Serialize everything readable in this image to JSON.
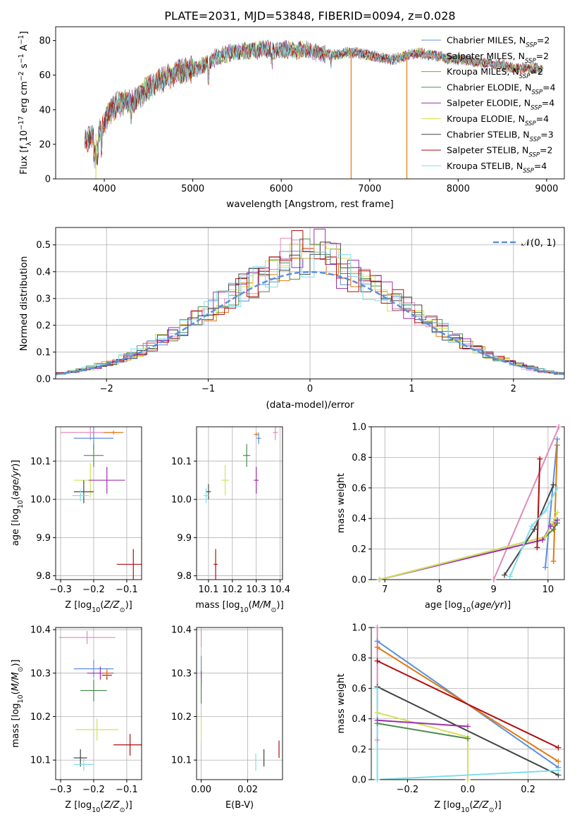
{
  "title": "PLATE=2031, MJD=53848, FIBERID=0094, z=0.028",
  "colors": {
    "Chabrier MILES": "#5b8fde",
    "Salpeter MILES": "#e389b9",
    "Kroupa MILES": "#e07a10",
    "Chabrier ELODIE": "#4e8a4e",
    "Salpeter ELODIE": "#9b2fae",
    "Kroupa ELODIE": "#d4e157",
    "Chabrier STELIB": "#444444",
    "Salpeter STELIB": "#b00d0d",
    "Kroupa STELIB": "#80deea"
  },
  "legend": [
    {
      "name": "Chabrier MILES",
      "n": "2"
    },
    {
      "name": "Salpeter MILES",
      "n": "2"
    },
    {
      "name": "Kroupa MILES",
      "n": "2"
    },
    {
      "name": "Chabrier ELODIE",
      "n": "4"
    },
    {
      "name": "Salpeter ELODIE",
      "n": "4"
    },
    {
      "name": "Kroupa ELODIE",
      "n": "4"
    },
    {
      "name": "Chabrier STELIB",
      "n": "3"
    },
    {
      "name": "Salpeter STELIB",
      "n": "2"
    },
    {
      "name": "Kroupa STELIB",
      "n": "4"
    }
  ],
  "legend_nssp": "N",
  "legend_nssp_sub": "SSP",
  "chart_data": [
    {
      "type": "line",
      "name": "spectrum",
      "xlabel": "wavelength [Angstrom, rest frame]",
      "ylabel": "Flux [f",
      "ylabel_parts": [
        "Flux [f",
        "λ",
        "10",
        "−17",
        " erg cm",
        "−2",
        " s",
        "−1",
        " A",
        "−1",
        "]"
      ],
      "xlim": [
        3450,
        9200
      ],
      "ylim": [
        0,
        88
      ],
      "xticks": [
        "4000",
        "5000",
        "6000",
        "7000",
        "8000",
        "9000"
      ],
      "yticks": [
        "0",
        "20",
        "40",
        "60",
        "80"
      ],
      "continuum": [
        [
          3780,
          22
        ],
        [
          3850,
          24
        ],
        [
          3950,
          28
        ],
        [
          4050,
          38
        ],
        [
          4150,
          43
        ],
        [
          4250,
          45
        ],
        [
          4350,
          46
        ],
        [
          4450,
          50
        ],
        [
          4550,
          55
        ],
        [
          4650,
          57
        ],
        [
          4750,
          60
        ],
        [
          4850,
          62
        ],
        [
          4950,
          63
        ],
        [
          5050,
          64
        ],
        [
          5150,
          66
        ],
        [
          5250,
          70
        ],
        [
          5350,
          72
        ],
        [
          5450,
          73
        ],
        [
          5550,
          74
        ],
        [
          5650,
          74
        ],
        [
          5750,
          75
        ],
        [
          5850,
          75
        ],
        [
          5950,
          74
        ],
        [
          6050,
          75
        ],
        [
          6150,
          74
        ],
        [
          6250,
          75
        ],
        [
          6350,
          74
        ],
        [
          6450,
          72
        ],
        [
          6550,
          72
        ],
        [
          6650,
          72
        ],
        [
          6750,
          73
        ],
        [
          6850,
          73
        ],
        [
          6950,
          72
        ],
        [
          7050,
          71
        ],
        [
          7150,
          70
        ],
        [
          7250,
          69
        ],
        [
          7350,
          70
        ],
        [
          7450,
          72
        ],
        [
          7550,
          73
        ],
        [
          7650,
          72
        ],
        [
          7750,
          71
        ],
        [
          7850,
          70
        ],
        [
          7950,
          69
        ],
        [
          8050,
          69
        ],
        [
          8150,
          68
        ],
        [
          8250,
          67
        ],
        [
          8350,
          67
        ],
        [
          8450,
          66
        ],
        [
          8550,
          65
        ],
        [
          8650,
          64
        ],
        [
          8750,
          64
        ],
        [
          8850,
          64
        ],
        [
          8950,
          64
        ]
      ],
      "dips": [
        {
          "series": "Kroupa ELODIE",
          "x": 3905,
          "to": 0
        },
        {
          "series": "Kroupa MILES",
          "x": 6790,
          "to": 0
        },
        {
          "series": "Kroupa MILES",
          "x": 7420,
          "to": 0
        }
      ]
    },
    {
      "type": "histogram",
      "name": "residuals",
      "xlabel": "(data-model)/error",
      "ylabel": "Normed distribution",
      "xlim": [
        -2.5,
        2.5
      ],
      "ylim": [
        0,
        0.565
      ],
      "xticks": [
        "−2",
        "−1",
        "0",
        "1",
        "2"
      ],
      "yticks": [
        "0.0",
        "0.1",
        "0.2",
        "0.3",
        "0.4",
        "0.5"
      ],
      "legend": "𝒩(0, 1)"
    },
    {
      "type": "scatter",
      "name": "age-vs-Z",
      "xlabel": "Z [log",
      "xlabel_sub": "10",
      "xlabel_rest": "(Z/Z",
      "ylabel_text": "age  [log",
      "xlim": [
        -0.315,
        -0.055
      ],
      "ylim": [
        9.79,
        10.19
      ],
      "xticks": [
        "−0.3",
        "−0.2",
        "−0.1"
      ],
      "yticks": [
        "9.8",
        "9.9",
        "10.0",
        "10.1"
      ],
      "points": [
        {
          "series": "Salpeter MILES",
          "x": -0.21,
          "y": 10.175,
          "xerr": 0.09,
          "yerr": 0.02
        },
        {
          "series": "Kroupa MILES",
          "x": -0.14,
          "y": 10.175,
          "xerr": 0.03,
          "yerr": 0.005
        },
        {
          "series": "Chabrier MILES",
          "x": -0.2,
          "y": 10.16,
          "xerr": 0.06,
          "yerr": 0.03
        },
        {
          "series": "Chabrier ELODIE",
          "x": -0.2,
          "y": 10.115,
          "xerr": 0.03,
          "yerr": 0.03
        },
        {
          "series": "Kroupa ELODIE",
          "x": -0.21,
          "y": 10.05,
          "xerr": 0.05,
          "yerr": 0.045
        },
        {
          "series": "Salpeter ELODIE",
          "x": -0.16,
          "y": 10.05,
          "xerr": 0.055,
          "yerr": 0.035
        },
        {
          "series": "Chabrier STELIB",
          "x": -0.23,
          "y": 10.02,
          "xerr": 0.03,
          "yerr": 0.03
        },
        {
          "series": "Kroupa STELIB",
          "x": -0.24,
          "y": 10.01,
          "xerr": 0.025,
          "yerr": 0.015
        },
        {
          "series": "Salpeter STELIB",
          "x": -0.08,
          "y": 9.83,
          "xerr": 0.05,
          "yerr": 0.04
        }
      ]
    },
    {
      "type": "scatter",
      "name": "age-vs-mass",
      "xlabel": "mass [log",
      "xlim": [
        10.05,
        10.41
      ],
      "ylim": [
        9.79,
        10.19
      ],
      "xticks": [
        "10.1",
        "10.2",
        "10.3",
        "10.4"
      ],
      "yticks": [
        "9.8",
        "9.9",
        "10.0",
        "10.1"
      ],
      "points": [
        {
          "series": "Salpeter MILES",
          "x": 10.38,
          "y": 10.175,
          "xerr": 0.01,
          "yerr": 0.02
        },
        {
          "series": "Kroupa MILES",
          "x": 10.3,
          "y": 10.17,
          "xerr": 0.01,
          "yerr": 0.005
        },
        {
          "series": "Chabrier MILES",
          "x": 10.31,
          "y": 10.16,
          "xerr": 0.01,
          "yerr": 0.015
        },
        {
          "series": "Chabrier ELODIE",
          "x": 10.26,
          "y": 10.115,
          "xerr": 0.015,
          "yerr": 0.03
        },
        {
          "series": "Kroupa ELODIE",
          "x": 10.17,
          "y": 10.05,
          "xerr": 0.015,
          "yerr": 0.04
        },
        {
          "series": "Salpeter ELODIE",
          "x": 10.3,
          "y": 10.05,
          "xerr": 0.01,
          "yerr": 0.035
        },
        {
          "series": "Chabrier STELIB",
          "x": 10.1,
          "y": 10.02,
          "xerr": 0.01,
          "yerr": 0.02
        },
        {
          "series": "Kroupa STELIB",
          "x": 10.09,
          "y": 10.01,
          "xerr": 0.01,
          "yerr": 0.02
        },
        {
          "series": "Salpeter STELIB",
          "x": 10.13,
          "y": 9.83,
          "xerr": 0.008,
          "yerr": 0.04
        }
      ]
    },
    {
      "type": "line",
      "name": "massweight-vs-age",
      "xlabel": "age  [log",
      "ylabel": "mass weight",
      "xlim": [
        6.75,
        10.3
      ],
      "ylim": [
        0,
        1.0
      ],
      "xticks": [
        "7",
        "8",
        "9",
        "10"
      ],
      "yticks": [
        "0.0",
        "0.2",
        "0.4",
        "0.6",
        "0.8",
        "1.0"
      ],
      "series": [
        {
          "name": "Chabrier MILES",
          "x": [
            9.95,
            10.17
          ],
          "y": [
            0.08,
            0.92
          ]
        },
        {
          "name": "Salpeter MILES",
          "x": [
            9.0,
            10.2
          ],
          "y": [
            0.0,
            1.0
          ]
        },
        {
          "name": "Kroupa MILES",
          "x": [
            10.1,
            10.17
          ],
          "y": [
            0.12,
            0.88
          ]
        },
        {
          "name": "Chabrier ELODIE",
          "x": [
            6.9,
            9.95,
            10.1,
            10.17
          ],
          "y": [
            0.0,
            0.28,
            0.33,
            0.37
          ]
        },
        {
          "name": "Salpeter ELODIE",
          "x": [
            6.9,
            9.9,
            10.05,
            10.17
          ],
          "y": [
            0.0,
            0.26,
            0.35,
            0.39
          ]
        },
        {
          "name": "Kroupa ELODIE",
          "x": [
            6.9,
            9.95,
            10.1,
            10.17
          ],
          "y": [
            0.0,
            0.28,
            0.38,
            0.44
          ]
        },
        {
          "name": "Chabrier STELIB",
          "x": [
            9.2,
            9.75,
            10.1
          ],
          "y": [
            0.03,
            0.33,
            0.62
          ]
        },
        {
          "name": "Salpeter STELIB",
          "x": [
            9.8,
            9.85
          ],
          "y": [
            0.21,
            0.79
          ]
        },
        {
          "name": "Kroupa STELIB",
          "x": [
            9.3,
            9.7,
            9.95,
            10.17
          ],
          "y": [
            0.02,
            0.35,
            0.45,
            0.6
          ]
        }
      ]
    },
    {
      "type": "scatter",
      "name": "mass-vs-Z",
      "xlabel": "Z [log",
      "ylabel_text": "mass [log",
      "xlim": [
        -0.315,
        -0.055
      ],
      "ylim": [
        10.055,
        10.405
      ],
      "xticks": [
        "−0.3",
        "−0.2",
        "−0.1"
      ],
      "yticks": [
        "10.1",
        "10.2",
        "10.3",
        "10.4"
      ],
      "points": [
        {
          "series": "Salpeter MILES",
          "x": -0.22,
          "y": 10.382,
          "xerr": 0.085,
          "yerr": 0.015
        },
        {
          "series": "Chabrier MILES",
          "x": -0.2,
          "y": 10.31,
          "xerr": 0.06,
          "yerr": 0.02
        },
        {
          "series": "Salpeter ELODIE",
          "x": -0.18,
          "y": 10.3,
          "xerr": 0.04,
          "yerr": 0.015
        },
        {
          "series": "Salpeter STELIB",
          "x": -0.16,
          "y": 10.295,
          "xerr": 0.015,
          "yerr": 0.01
        },
        {
          "series": "Kroupa MILES",
          "x": -0.16,
          "y": 10.3,
          "xerr": 0.01,
          "yerr": 0.01
        },
        {
          "series": "Chabrier ELODIE",
          "x": -0.2,
          "y": 10.26,
          "xerr": 0.04,
          "yerr": 0.025
        },
        {
          "series": "Kroupa ELODIE",
          "x": -0.19,
          "y": 10.17,
          "xerr": 0.065,
          "yerr": 0.025
        },
        {
          "series": "Salpeter STELIB",
          "x": -0.09,
          "y": 10.135,
          "xerr": 0.05,
          "yerr": 0.025
        },
        {
          "series": "Chabrier STELIB",
          "x": -0.24,
          "y": 10.105,
          "xerr": 0.02,
          "yerr": 0.02
        },
        {
          "series": "Kroupa STELIB",
          "x": -0.23,
          "y": 10.09,
          "xerr": 0.03,
          "yerr": 0.015
        }
      ]
    },
    {
      "type": "scatter",
      "name": "mass-vs-EBV",
      "xlabel": "E(B-V)",
      "xlim": [
        -0.002,
        0.035
      ],
      "ylim": [
        10.055,
        10.405
      ],
      "xticks": [
        "0.00",
        "0.02"
      ],
      "yticks": [
        "10.1",
        "10.2",
        "10.3",
        "10.4"
      ],
      "points": [
        {
          "series": "Salpeter MILES",
          "x": 0.0,
          "y": 10.38,
          "xerr": 0,
          "yerr": 0.02
        },
        {
          "series": "Chabrier MILES",
          "x": 0.0,
          "y": 10.31,
          "xerr": 0,
          "yerr": 0.03
        },
        {
          "series": "Salpeter ELODIE",
          "x": 0.0,
          "y": 10.29,
          "xerr": 0,
          "yerr": 0.015
        },
        {
          "series": "Chabrier ELODIE",
          "x": 0.0,
          "y": 10.26,
          "xerr": 0,
          "yerr": 0.03
        },
        {
          "series": "Kroupa ELODIE",
          "x": 0.0,
          "y": 10.17,
          "xerr": 0,
          "yerr": 0.03
        },
        {
          "series": "Salpeter STELIB",
          "x": 0.0335,
          "y": 10.125,
          "xerr": 0,
          "yerr": 0.02
        },
        {
          "series": "Chabrier STELIB",
          "x": 0.027,
          "y": 10.105,
          "xerr": 0,
          "yerr": 0.02
        },
        {
          "series": "Kroupa STELIB",
          "x": 0.0235,
          "y": 10.095,
          "xerr": 0,
          "yerr": 0.02
        }
      ]
    },
    {
      "type": "line",
      "name": "massweight-vs-Z",
      "xlabel": "Z [log",
      "ylabel": "mass weight",
      "xlim": [
        -0.32,
        0.32
      ],
      "ylim": [
        0,
        1.0
      ],
      "xticks": [
        "−0.2",
        "0.0",
        "0.2"
      ],
      "yticks": [
        "0.0",
        "0.2",
        "0.4",
        "0.6",
        "0.8",
        "1.0"
      ],
      "series": [
        {
          "name": "Chabrier MILES",
          "x": [
            -0.3,
            0.3
          ],
          "y": [
            0.91,
            0.08
          ]
        },
        {
          "name": "Salpeter MILES",
          "x": [
            -0.3,
            -0.3
          ],
          "y": [
            1.0,
            0.26
          ]
        },
        {
          "name": "Kroupa MILES",
          "x": [
            -0.3,
            0.3
          ],
          "y": [
            0.87,
            0.12
          ]
        },
        {
          "name": "Salpeter STELIB",
          "x": [
            -0.3,
            0.3
          ],
          "y": [
            0.78,
            0.21
          ]
        },
        {
          "name": "Chabrier STELIB",
          "x": [
            -0.3,
            0.3
          ],
          "y": [
            0.61,
            0.03
          ]
        },
        {
          "name": "Kroupa ELODIE",
          "x": [
            -0.3,
            0.0,
            0.0
          ],
          "y": [
            0.44,
            0.28,
            0.0
          ]
        },
        {
          "name": "Salpeter ELODIE",
          "x": [
            -0.3,
            0.0
          ],
          "y": [
            0.39,
            0.35
          ]
        },
        {
          "name": "Chabrier ELODIE",
          "x": [
            -0.3,
            0.0
          ],
          "y": [
            0.37,
            0.27
          ]
        },
        {
          "name": "Kroupa STELIB",
          "x": [
            -0.3,
            -0.3,
            0.3
          ],
          "y": [
            0.6,
            0.0,
            0.06
          ]
        }
      ]
    }
  ]
}
